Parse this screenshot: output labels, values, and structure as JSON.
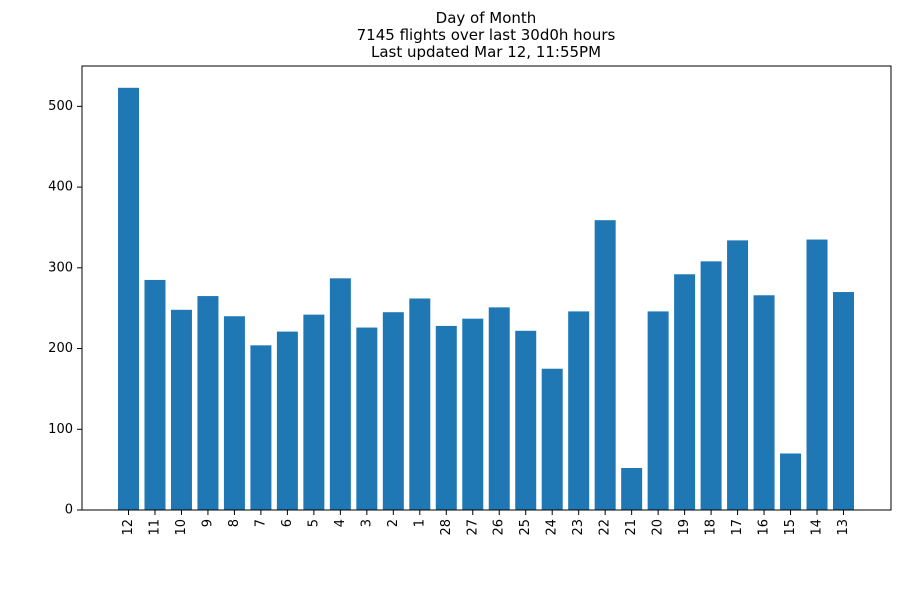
{
  "chart_data": {
    "type": "bar",
    "title": [
      "Day of Month",
      "7145 flights over last 30d0h hours",
      "Last updated Mar 12, 11:55PM"
    ],
    "xlabel": "",
    "ylabel": "",
    "categories": [
      "12",
      "11",
      "10",
      "9",
      "8",
      "7",
      "6",
      "5",
      "4",
      "3",
      "2",
      "1",
      "28",
      "27",
      "26",
      "25",
      "24",
      "23",
      "22",
      "21",
      "20",
      "19",
      "18",
      "17",
      "16",
      "15",
      "14",
      "13"
    ],
    "values": [
      523,
      285,
      248,
      265,
      240,
      204,
      221,
      242,
      287,
      226,
      245,
      262,
      228,
      237,
      251,
      222,
      175,
      246,
      359,
      52,
      246,
      292,
      308,
      334,
      266,
      70,
      335,
      270
    ],
    "ylim": [
      0,
      550
    ],
    "yticks": [
      0,
      100,
      200,
      300,
      400,
      500
    ],
    "bar_color": "#1f77b4",
    "grid": false
  }
}
